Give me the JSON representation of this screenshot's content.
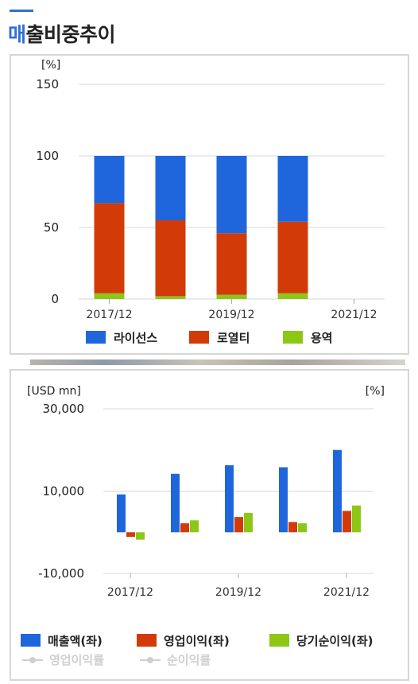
{
  "page": {
    "title_accent": "매",
    "title_rest": "출비중추이"
  },
  "colors": {
    "blue": "#1f66dc",
    "red": "#d23b08",
    "green": "#8cc716",
    "grid": "#d0d8e4",
    "legend_muted": "#cfcfcf"
  },
  "chart_data": [
    {
      "type": "bar",
      "stacked": true,
      "unit_label": "[%]",
      "ylim": [
        0,
        150
      ],
      "yticks": [
        "150",
        "100",
        "50",
        "0"
      ],
      "grid": true,
      "legend_position": "bottom",
      "xtick_labels": [
        "2017/12",
        "2019/12",
        "2021/12"
      ],
      "series": [
        {
          "name": "라이선스",
          "values": [
            33,
            45,
            54,
            46,
            null
          ],
          "color": "#1f66dc",
          "icon": "legend-swatch-blue"
        },
        {
          "name": "로열티",
          "values": [
            63,
            53,
            43,
            50,
            null
          ],
          "color": "#d23b08",
          "icon": "legend-swatch-red"
        },
        {
          "name": "용역",
          "values": [
            4,
            2,
            3,
            4,
            null
          ],
          "color": "#8cc716",
          "icon": "legend-swatch-green"
        }
      ]
    },
    {
      "type": "bar",
      "unit_label_left": "[USD mn]",
      "unit_label_right": "[%]",
      "ylim": [
        -10000,
        30000
      ],
      "yticks": [
        "30,000",
        "10,000",
        "-10,000"
      ],
      "grid": true,
      "legend_position": "bottom",
      "xtick_labels": [
        "2017/12",
        "2019/12",
        "2021/12"
      ],
      "series": [
        {
          "name": "매출액(좌)",
          "values": [
            9200,
            14200,
            16300,
            15800,
            20000
          ],
          "color": "#1f66dc"
        },
        {
          "name": "영업이익(좌)",
          "values": [
            -1100,
            2200,
            3700,
            2500,
            5200
          ],
          "color": "#d23b08"
        },
        {
          "name": "당기순이익(좌)",
          "values": [
            -1800,
            2900,
            4700,
            2200,
            6500
          ],
          "color": "#8cc716"
        }
      ],
      "line_series": [
        {
          "name": "영업이익률"
        },
        {
          "name": "순이익률"
        }
      ]
    }
  ]
}
